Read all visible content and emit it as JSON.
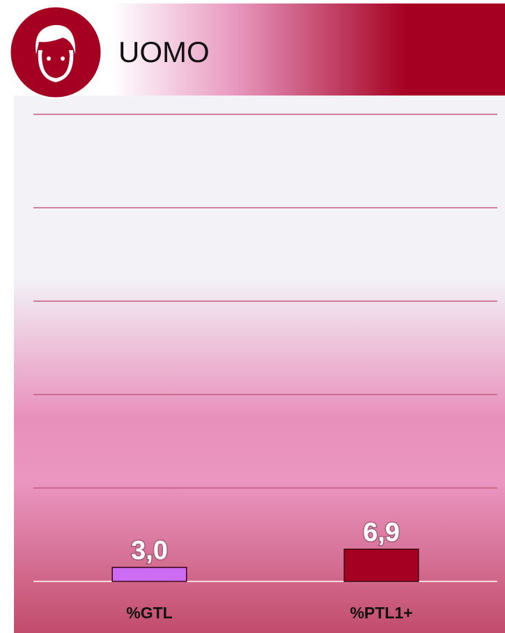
{
  "chart_data": {
    "type": "bar",
    "title": "UOMO",
    "categories": [
      "%GTL",
      "%PTL1+"
    ],
    "series": [
      {
        "name": null,
        "colors": [
          "#cc6cf5",
          "#a50021"
        ],
        "values": [
          3.0,
          6.9
        ],
        "value_labels": [
          "3,0",
          "6,9"
        ]
      }
    ],
    "ylim": [
      0,
      100
    ],
    "yticks": [
      0,
      20,
      40,
      60,
      80,
      100
    ],
    "grid": true
  }
}
